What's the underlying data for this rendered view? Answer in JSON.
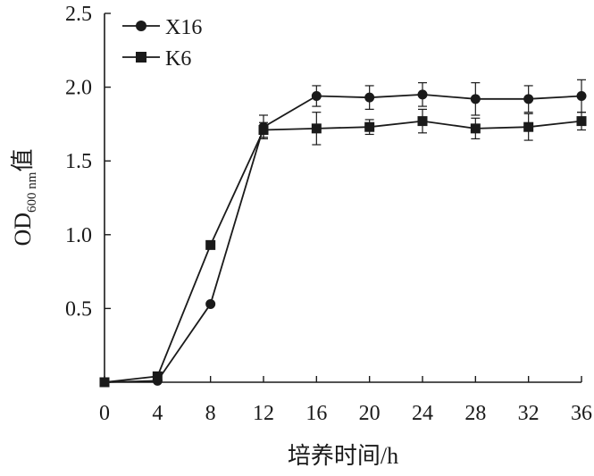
{
  "chart_data": {
    "type": "line",
    "xlabel": "培养时间/h",
    "ylabel": {
      "main": "OD",
      "subscript": "600 nm",
      "suffix": "值"
    },
    "xlim": [
      0,
      36
    ],
    "ylim": [
      0,
      2.5
    ],
    "xticks": [
      0,
      4,
      8,
      12,
      16,
      20,
      24,
      28,
      32,
      36
    ],
    "xtick_labels": [
      "0",
      "4",
      "8",
      "12",
      "16",
      "20",
      "24",
      "28",
      "32",
      "36"
    ],
    "yticks": [
      0,
      0.5,
      1.0,
      1.5,
      2.0,
      2.5
    ],
    "ytick_labels": [
      "0.5",
      "1.0",
      "1.5",
      "2.0",
      "2.5"
    ],
    "grid": false,
    "legend_position": "top-left",
    "x": [
      0,
      4,
      8,
      12,
      16,
      20,
      24,
      28,
      32,
      36
    ],
    "series": [
      {
        "name": "X16",
        "marker": "circle",
        "color": "#1a1a1a",
        "values": [
          0.0,
          0.01,
          0.53,
          1.73,
          1.94,
          1.93,
          1.95,
          1.92,
          1.92,
          1.94
        ],
        "errors": [
          0.0,
          0.0,
          0.0,
          0.08,
          0.07,
          0.08,
          0.08,
          0.11,
          0.09,
          0.11
        ]
      },
      {
        "name": "K6",
        "marker": "square",
        "color": "#1a1a1a",
        "values": [
          0.0,
          0.04,
          0.93,
          1.71,
          1.72,
          1.73,
          1.77,
          1.72,
          1.73,
          1.77
        ],
        "errors": [
          0.0,
          0.0,
          0.0,
          0.05,
          0.11,
          0.05,
          0.08,
          0.07,
          0.09,
          0.06
        ]
      }
    ]
  }
}
